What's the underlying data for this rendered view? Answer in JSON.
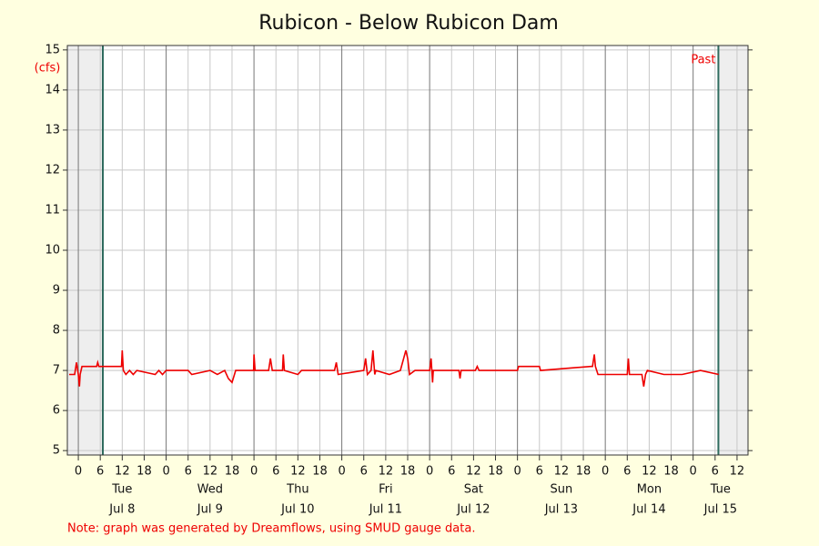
{
  "chart_data": {
    "type": "line",
    "title": "Rubicon - Below Rubicon Dam",
    "y_label": "(cfs)",
    "window_label": "Past",
    "note": "Note: graph was generated by Dreamflows, using SMUD gauge data.",
    "window": [
      6.7,
      174.9
    ],
    "xlim": [
      -3,
      183
    ],
    "ylim": [
      4.89,
      15.11
    ],
    "yticks": [
      5,
      6,
      7,
      8,
      9,
      10,
      11,
      12,
      13,
      14,
      15
    ],
    "xticks": [
      0,
      6,
      12,
      18,
      {
        "value": 24,
        "label": "0"
      },
      {
        "value": 30,
        "label": "6"
      },
      {
        "value": 36,
        "label": "12"
      },
      {
        "value": 42,
        "label": "18"
      },
      {
        "value": 48,
        "label": "0"
      },
      {
        "value": 54,
        "label": "6"
      },
      {
        "value": 60,
        "label": "12"
      },
      {
        "value": 66,
        "label": "18"
      },
      {
        "value": 72,
        "label": "0"
      },
      {
        "value": 78,
        "label": "6"
      },
      {
        "value": 84,
        "label": "12"
      },
      {
        "value": 90,
        "label": "18"
      },
      {
        "value": 96,
        "label": "0"
      },
      {
        "value": 102,
        "label": "6"
      },
      {
        "value": 108,
        "label": "12"
      },
      {
        "value": 114,
        "label": "18"
      },
      {
        "value": 120,
        "label": "0"
      },
      {
        "value": 126,
        "label": "6"
      },
      {
        "value": 132,
        "label": "12"
      },
      {
        "value": 138,
        "label": "18"
      },
      {
        "value": 144,
        "label": "0"
      },
      {
        "value": 150,
        "label": "6"
      },
      {
        "value": 156,
        "label": "12"
      },
      {
        "value": 162,
        "label": "18"
      },
      {
        "value": 168,
        "label": "0"
      },
      {
        "value": 174,
        "label": "6"
      },
      {
        "value": 180,
        "label": "12"
      }
    ],
    "days": [
      {
        "value": 12,
        "weekday": "Tue",
        "date": "Jul 8"
      },
      {
        "value": 36,
        "weekday": "Wed",
        "date": "Jul 9"
      },
      {
        "value": 60,
        "weekday": "Thu",
        "date": "Jul 10"
      },
      {
        "value": 84,
        "weekday": "Fri",
        "date": "Jul 11"
      },
      {
        "value": 108,
        "weekday": "Sat",
        "date": "Jul 12"
      },
      {
        "value": 132,
        "weekday": "Sun",
        "date": "Jul 13"
      },
      {
        "value": 156,
        "weekday": "Mon",
        "date": "Jul 14"
      },
      {
        "value": 175.5,
        "weekday": "Tue",
        "date": "Jul 15"
      }
    ],
    "grid": true,
    "color": "#ee0000",
    "x": [
      -2.5,
      -1,
      -0.5,
      0,
      0.3,
      0.5,
      1,
      5,
      5.3,
      5.6,
      11.8,
      12,
      12.3,
      13,
      14,
      15,
      16,
      21,
      22,
      23,
      24,
      30,
      31,
      36,
      38,
      40,
      41,
      42,
      43,
      44,
      47.9,
      48,
      48.3,
      52,
      52.5,
      53,
      55.8,
      56,
      56.3,
      60,
      61,
      70,
      70.5,
      71,
      78,
      78.5,
      79,
      80,
      80.5,
      81,
      81.3,
      85,
      88,
      89.5,
      90,
      90.5,
      92,
      96,
      96.4,
      96.8,
      97,
      104,
      104.3,
      104.6,
      108.5,
      109,
      109.5,
      120,
      120.3,
      126,
      126.3,
      140,
      140.5,
      141,
      141.3,
      142,
      142.5,
      150,
      150.3,
      150.6,
      154,
      154.5,
      155,
      155.5,
      160,
      165,
      170,
      175
    ],
    "values": [
      6.9,
      6.9,
      7.2,
      6.9,
      6.6,
      6.9,
      7.1,
      7.1,
      7.2,
      7.1,
      7.1,
      7.5,
      7,
      6.9,
      7,
      6.9,
      7,
      6.9,
      7,
      6.9,
      7,
      7,
      6.9,
      7,
      6.9,
      7,
      6.8,
      6.7,
      7,
      7,
      7,
      7.4,
      7,
      7,
      7.3,
      7,
      7,
      7.4,
      7,
      6.9,
      7,
      7,
      7.2,
      6.9,
      7,
      7.3,
      6.9,
      7,
      7.5,
      6.9,
      7,
      6.9,
      7,
      7.5,
      7.3,
      6.9,
      7,
      7,
      7.3,
      6.7,
      7,
      7,
      6.8,
      7,
      7,
      7.1,
      7,
      7,
      7.1,
      7.1,
      7,
      7.1,
      7.1,
      7.4,
      7.1,
      6.9,
      6.9,
      6.9,
      7.3,
      6.9,
      6.9,
      6.6,
      6.9,
      7,
      6.9,
      6.9,
      7,
      6.9
    ]
  }
}
